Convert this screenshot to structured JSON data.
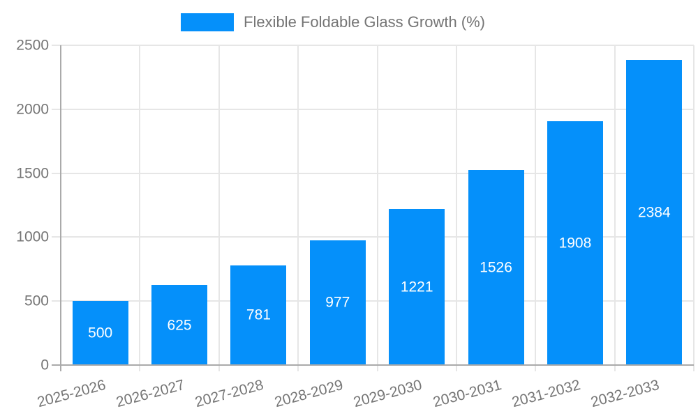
{
  "legend": {
    "label": "Flexible Foldable Glass Growth (%)"
  },
  "colors": {
    "bar": "#0590fa",
    "grid": "#e6e6e6",
    "axis": "#aaaaaa",
    "tick_text": "#757575",
    "value_label_text": "#ffffff",
    "background": "#ffffff"
  },
  "chart_data": {
    "type": "bar",
    "title": "",
    "xlabel": "",
    "ylabel": "",
    "categories": [
      "2025-2026",
      "2026-2027",
      "2027-2028",
      "2028-2029",
      "2029-2030",
      "2030-2031",
      "2031-2032",
      "2032-2033"
    ],
    "series": [
      {
        "name": "Flexible Foldable Glass Growth (%)",
        "values": [
          500,
          625,
          781,
          977,
          1221,
          1526,
          1908,
          2384
        ]
      }
    ],
    "value_labels": "inside-center",
    "ylim": [
      0,
      2500
    ],
    "yticks": [
      0,
      500,
      1000,
      1500,
      2000,
      2500
    ],
    "grid": true,
    "legend_position": "top",
    "x_label_rotation_deg": -15
  }
}
